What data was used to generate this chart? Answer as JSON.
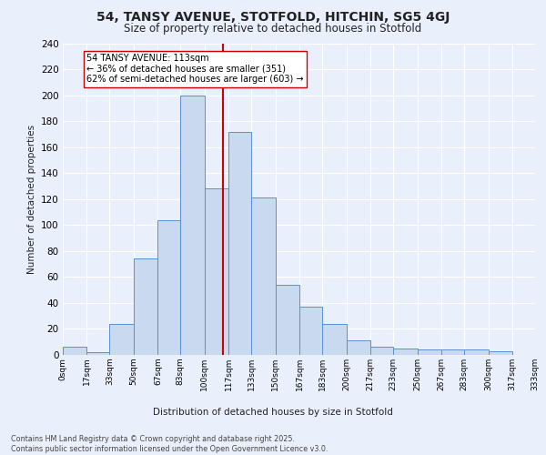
{
  "title_line1": "54, TANSY AVENUE, STOTFOLD, HITCHIN, SG5 4GJ",
  "title_line2": "Size of property relative to detached houses in Stotfold",
  "xlabel": "Distribution of detached houses by size in Stotfold",
  "ylabel": "Number of detached properties",
  "bin_labels": [
    "0sqm",
    "17sqm",
    "33sqm",
    "50sqm",
    "67sqm",
    "83sqm",
    "100sqm",
    "117sqm",
    "133sqm",
    "150sqm",
    "167sqm",
    "183sqm",
    "200sqm",
    "217sqm",
    "233sqm",
    "250sqm",
    "267sqm",
    "283sqm",
    "300sqm",
    "317sqm",
    "333sqm"
  ],
  "bar_values": [
    6,
    2,
    24,
    74,
    104,
    200,
    128,
    172,
    121,
    54,
    37,
    24,
    11,
    6,
    5,
    4,
    4,
    4,
    3,
    0
  ],
  "bin_edges": [
    0,
    17,
    33,
    50,
    67,
    83,
    100,
    117,
    133,
    150,
    167,
    183,
    200,
    217,
    233,
    250,
    267,
    283,
    300,
    317,
    333
  ],
  "bar_color": "#c9d9f0",
  "bar_edge_color": "#5b8fd4",
  "vline_x": 113,
  "vline_color": "#cc0000",
  "annotation_text": "54 TANSY AVENUE: 113sqm\n← 36% of detached houses are smaller (351)\n62% of semi-detached houses are larger (603) →",
  "bg_color": "#eaf0fb",
  "plot_bg_color": "#eaf0fb",
  "grid_color": "#ffffff",
  "footer_text": "Contains HM Land Registry data © Crown copyright and database right 2025.\nContains public sector information licensed under the Open Government Licence v3.0.",
  "ylim": [
    0,
    240
  ],
  "yticks": [
    0,
    20,
    40,
    60,
    80,
    100,
    120,
    140,
    160,
    180,
    200,
    220,
    240
  ]
}
